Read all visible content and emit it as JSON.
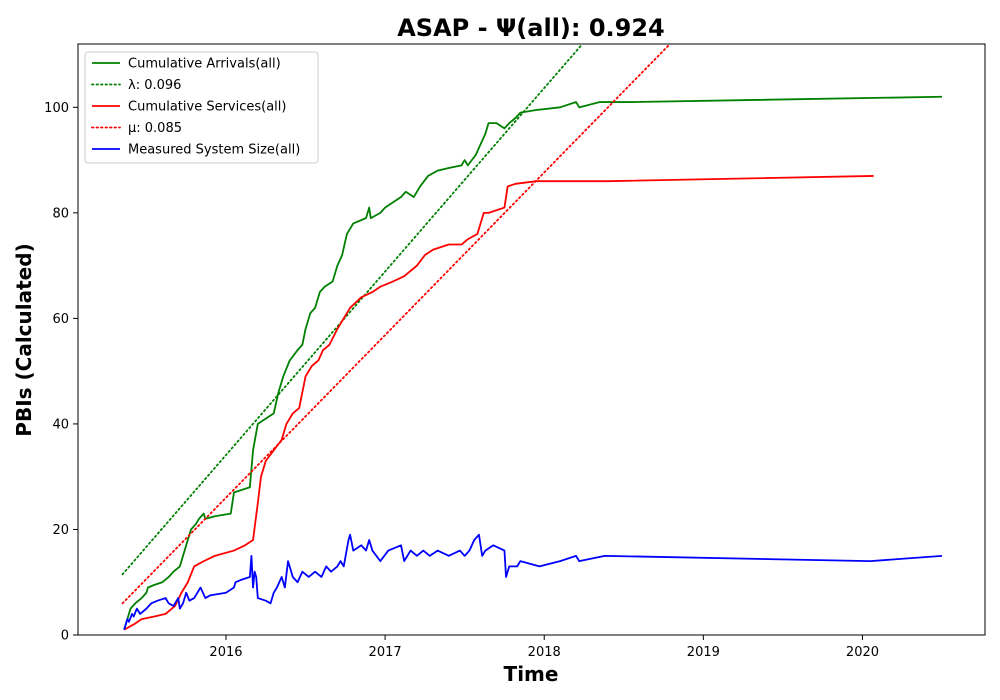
{
  "chart_data": {
    "type": "line",
    "title": "ASAP -  Ψ(all): 0.924",
    "xlabel": "Time",
    "ylabel": "PBIs (Calculated)",
    "xlim": [
      2015.07,
      2020.77
    ],
    "ylim": [
      0,
      112
    ],
    "xticks": [
      2016,
      2017,
      2018,
      2019,
      2020
    ],
    "xtick_labels": [
      "2016",
      "2017",
      "2018",
      "2019",
      "2020"
    ],
    "yticks": [
      0,
      20,
      40,
      60,
      80,
      100
    ],
    "ytick_labels": [
      "0",
      "20",
      "40",
      "60",
      "80",
      "100"
    ],
    "grid": false,
    "legend_position": "top-left",
    "series": [
      {
        "name": "Cumulative Arrivals(all)",
        "color": "#008000",
        "style": "solid",
        "points": [
          [
            2015.36,
            1
          ],
          [
            2015.37,
            2
          ],
          [
            2015.38,
            3
          ],
          [
            2015.39,
            4
          ],
          [
            2015.4,
            5
          ],
          [
            2015.43,
            6
          ],
          [
            2015.47,
            7
          ],
          [
            2015.5,
            8
          ],
          [
            2015.51,
            9
          ],
          [
            2015.55,
            9.5
          ],
          [
            2015.6,
            10
          ],
          [
            2015.64,
            11
          ],
          [
            2015.67,
            12
          ],
          [
            2015.71,
            13
          ],
          [
            2015.73,
            15
          ],
          [
            2015.75,
            17
          ],
          [
            2015.77,
            19
          ],
          [
            2015.78,
            20
          ],
          [
            2015.81,
            21
          ],
          [
            2015.83,
            22
          ],
          [
            2015.86,
            23
          ],
          [
            2015.87,
            22
          ],
          [
            2015.93,
            22.5
          ],
          [
            2016.03,
            23
          ],
          [
            2016.05,
            27
          ],
          [
            2016.1,
            27.5
          ],
          [
            2016.15,
            28
          ],
          [
            2016.17,
            35
          ],
          [
            2016.2,
            40
          ],
          [
            2016.25,
            41
          ],
          [
            2016.3,
            42
          ],
          [
            2016.33,
            46
          ],
          [
            2016.36,
            49
          ],
          [
            2016.4,
            52
          ],
          [
            2016.45,
            54
          ],
          [
            2016.48,
            55
          ],
          [
            2016.5,
            58
          ],
          [
            2016.53,
            61
          ],
          [
            2016.56,
            62
          ],
          [
            2016.59,
            65
          ],
          [
            2016.62,
            66
          ],
          [
            2016.67,
            67
          ],
          [
            2016.7,
            70
          ],
          [
            2016.73,
            72
          ],
          [
            2016.76,
            76
          ],
          [
            2016.8,
            78
          ],
          [
            2016.88,
            79
          ],
          [
            2016.9,
            81
          ],
          [
            2016.91,
            79
          ],
          [
            2016.97,
            80
          ],
          [
            2017.0,
            81
          ],
          [
            2017.05,
            82
          ],
          [
            2017.1,
            83
          ],
          [
            2017.13,
            84
          ],
          [
            2017.18,
            83
          ],
          [
            2017.22,
            85
          ],
          [
            2017.27,
            87
          ],
          [
            2017.33,
            88
          ],
          [
            2017.4,
            88.5
          ],
          [
            2017.48,
            89
          ],
          [
            2017.5,
            90
          ],
          [
            2017.52,
            89
          ],
          [
            2017.57,
            91
          ],
          [
            2017.6,
            93
          ],
          [
            2017.63,
            95
          ],
          [
            2017.65,
            97
          ],
          [
            2017.7,
            97
          ],
          [
            2017.75,
            96
          ],
          [
            2017.78,
            97
          ],
          [
            2017.82,
            98
          ],
          [
            2017.85,
            99
          ],
          [
            2017.95,
            99.5
          ],
          [
            2018.1,
            100
          ],
          [
            2018.2,
            101
          ],
          [
            2018.22,
            100
          ],
          [
            2018.35,
            101
          ],
          [
            2018.55,
            101
          ],
          [
            2020.5,
            102
          ]
        ]
      },
      {
        "name": "λ: 0.096",
        "color": "#008000",
        "style": "dotted",
        "points": [
          [
            2015.35,
            11.5
          ],
          [
            2018.24,
            112
          ]
        ]
      },
      {
        "name": "Cumulative Services(all)",
        "color": "#ff0000",
        "style": "solid",
        "points": [
          [
            2015.36,
            1
          ],
          [
            2015.42,
            2
          ],
          [
            2015.47,
            3
          ],
          [
            2015.55,
            3.5
          ],
          [
            2015.62,
            4
          ],
          [
            2015.68,
            5.5
          ],
          [
            2015.72,
            8
          ],
          [
            2015.76,
            10
          ],
          [
            2015.8,
            13
          ],
          [
            2015.86,
            14
          ],
          [
            2015.93,
            15
          ],
          [
            2016.05,
            16
          ],
          [
            2016.12,
            17
          ],
          [
            2016.17,
            18
          ],
          [
            2016.2,
            25
          ],
          [
            2016.22,
            30
          ],
          [
            2016.25,
            33
          ],
          [
            2016.3,
            35
          ],
          [
            2016.35,
            37
          ],
          [
            2016.38,
            40
          ],
          [
            2016.42,
            42
          ],
          [
            2016.46,
            43
          ],
          [
            2016.5,
            49
          ],
          [
            2016.54,
            51
          ],
          [
            2016.58,
            52
          ],
          [
            2016.61,
            54
          ],
          [
            2016.65,
            55
          ],
          [
            2016.7,
            58
          ],
          [
            2016.74,
            60
          ],
          [
            2016.78,
            62
          ],
          [
            2016.85,
            64
          ],
          [
            2016.92,
            65
          ],
          [
            2016.97,
            66
          ],
          [
            2017.05,
            67
          ],
          [
            2017.12,
            68
          ],
          [
            2017.2,
            70
          ],
          [
            2017.25,
            72
          ],
          [
            2017.3,
            73
          ],
          [
            2017.4,
            74
          ],
          [
            2017.48,
            74
          ],
          [
            2017.52,
            75
          ],
          [
            2017.58,
            76
          ],
          [
            2017.62,
            80
          ],
          [
            2017.65,
            80
          ],
          [
            2017.75,
            81
          ],
          [
            2017.77,
            85
          ],
          [
            2017.82,
            85.5
          ],
          [
            2017.95,
            86
          ],
          [
            2018.4,
            86
          ],
          [
            2020.07,
            87
          ]
        ]
      },
      {
        "name": "μ: 0.085",
        "color": "#ff0000",
        "style": "dotted",
        "points": [
          [
            2015.35,
            6
          ],
          [
            2018.79,
            112
          ]
        ]
      },
      {
        "name": "Measured System Size(all)",
        "color": "#0000ff",
        "style": "solid",
        "points": [
          [
            2015.36,
            1
          ],
          [
            2015.37,
            2
          ],
          [
            2015.38,
            3
          ],
          [
            2015.39,
            2.5
          ],
          [
            2015.41,
            4
          ],
          [
            2015.42,
            3.5
          ],
          [
            2015.44,
            5
          ],
          [
            2015.46,
            4
          ],
          [
            2015.5,
            5
          ],
          [
            2015.53,
            6
          ],
          [
            2015.57,
            6.5
          ],
          [
            2015.62,
            7
          ],
          [
            2015.64,
            6
          ],
          [
            2015.67,
            5.5
          ],
          [
            2015.7,
            7
          ],
          [
            2015.71,
            5
          ],
          [
            2015.73,
            6
          ],
          [
            2015.75,
            8
          ],
          [
            2015.77,
            6.5
          ],
          [
            2015.8,
            7
          ],
          [
            2015.82,
            8
          ],
          [
            2015.84,
            9
          ],
          [
            2015.87,
            7
          ],
          [
            2015.9,
            7.5
          ],
          [
            2016.0,
            8
          ],
          [
            2016.05,
            9
          ],
          [
            2016.06,
            10
          ],
          [
            2016.1,
            10.5
          ],
          [
            2016.15,
            11
          ],
          [
            2016.16,
            15
          ],
          [
            2016.17,
            9
          ],
          [
            2016.18,
            12
          ],
          [
            2016.19,
            11
          ],
          [
            2016.2,
            7
          ],
          [
            2016.25,
            6.5
          ],
          [
            2016.28,
            6
          ],
          [
            2016.3,
            8
          ],
          [
            2016.32,
            9
          ],
          [
            2016.35,
            11
          ],
          [
            2016.37,
            9
          ],
          [
            2016.39,
            14
          ],
          [
            2016.42,
            11
          ],
          [
            2016.45,
            10
          ],
          [
            2016.48,
            12
          ],
          [
            2016.52,
            11
          ],
          [
            2016.56,
            12
          ],
          [
            2016.6,
            11
          ],
          [
            2016.63,
            13
          ],
          [
            2016.66,
            12
          ],
          [
            2016.7,
            13
          ],
          [
            2016.72,
            14
          ],
          [
            2016.74,
            13
          ],
          [
            2016.77,
            18
          ],
          [
            2016.78,
            19
          ],
          [
            2016.8,
            16
          ],
          [
            2016.85,
            17
          ],
          [
            2016.88,
            16
          ],
          [
            2016.9,
            18
          ],
          [
            2016.92,
            16
          ],
          [
            2016.97,
            14
          ],
          [
            2017.02,
            16
          ],
          [
            2017.1,
            17
          ],
          [
            2017.12,
            14
          ],
          [
            2017.16,
            16
          ],
          [
            2017.2,
            15
          ],
          [
            2017.24,
            16
          ],
          [
            2017.28,
            15
          ],
          [
            2017.33,
            16
          ],
          [
            2017.4,
            15
          ],
          [
            2017.47,
            16
          ],
          [
            2017.5,
            15
          ],
          [
            2017.53,
            16
          ],
          [
            2017.56,
            18
          ],
          [
            2017.59,
            19
          ],
          [
            2017.61,
            15
          ],
          [
            2017.63,
            16
          ],
          [
            2017.68,
            17
          ],
          [
            2017.75,
            16
          ],
          [
            2017.76,
            11
          ],
          [
            2017.78,
            13
          ],
          [
            2017.83,
            13
          ],
          [
            2017.85,
            14
          ],
          [
            2017.97,
            13
          ],
          [
            2018.1,
            14
          ],
          [
            2018.2,
            15
          ],
          [
            2018.22,
            14
          ],
          [
            2018.38,
            15
          ],
          [
            2020.05,
            14
          ],
          [
            2020.5,
            15
          ]
        ]
      }
    ]
  }
}
